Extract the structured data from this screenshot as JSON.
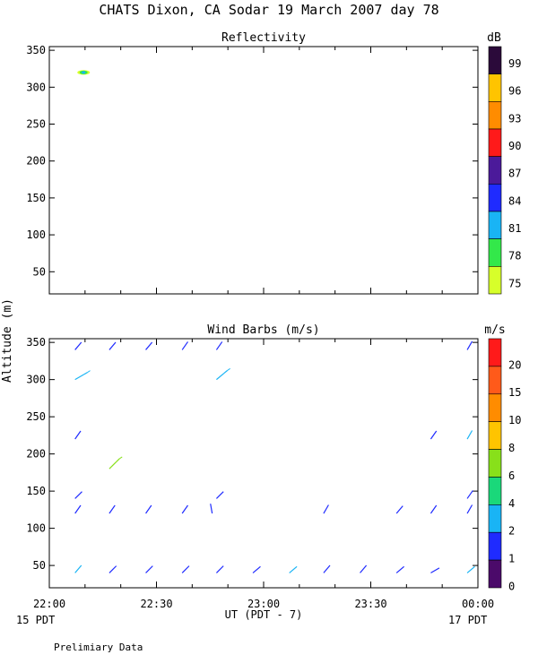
{
  "figure": {
    "title": "CHATS Dixon, CA  Sodar  19 March 2007  day  78",
    "y_label": "Altitude (m)",
    "x_label": "UT  (PDT - 7)",
    "left_date": "15 PDT",
    "right_date": "17 PDT",
    "footer": "Prelimiary Data"
  },
  "chart_data": [
    {
      "type": "heatmap",
      "title": "Reflectivity",
      "x_ticks": [
        "22:00",
        "22:30",
        "23:00",
        "23:30",
        "00:00"
      ],
      "x_range_hours": [
        22.0,
        24.0
      ],
      "ylim": [
        20,
        355
      ],
      "y_ticks": [
        50,
        100,
        150,
        200,
        250,
        300,
        350
      ],
      "grid": false,
      "colorbar": {
        "unit": "dB",
        "labels": [
          "99",
          "96",
          "93",
          "90",
          "87",
          "84",
          "81",
          "78",
          "75"
        ],
        "colors": [
          "#2b0a3a",
          "#ffc400",
          "#ff8c00",
          "#ff1a1a",
          "#4b1a9a",
          "#1f2bff",
          "#19b4f5",
          "#33e84a",
          "#d7ff2a"
        ]
      },
      "points": [
        {
          "time_hour": 22.16,
          "altitude": 320,
          "value": 78
        }
      ]
    },
    {
      "type": "scatter",
      "title": "Wind Barbs (m/s)",
      "x_ticks": [
        "22:00",
        "22:30",
        "23:00",
        "23:30",
        "00:00"
      ],
      "x_range_hours": [
        22.0,
        24.0
      ],
      "ylim": [
        20,
        355
      ],
      "y_ticks": [
        50,
        100,
        150,
        200,
        250,
        300,
        350
      ],
      "grid": false,
      "colorbar": {
        "unit": "m/s",
        "labels": [
          "20",
          "15",
          "10",
          "8",
          "6",
          "4",
          "2",
          "1",
          "0"
        ],
        "colors": [
          "#ff1a1a",
          "#ff5a1a",
          "#ff8c00",
          "#ffc400",
          "#88e01a",
          "#1ad87a",
          "#19b4f5",
          "#1f2bff",
          "#4b0a6a"
        ]
      },
      "barbs": [
        {
          "t": 22.12,
          "alt": 340,
          "dir": 220,
          "color": "#1f2bff",
          "staff": false
        },
        {
          "t": 22.28,
          "alt": 340,
          "dir": 220,
          "color": "#1f2bff",
          "staff": false
        },
        {
          "t": 22.45,
          "alt": 340,
          "dir": 220,
          "color": "#1f2bff",
          "staff": false
        },
        {
          "t": 22.62,
          "alt": 340,
          "dir": 215,
          "color": "#1f2bff",
          "staff": false
        },
        {
          "t": 22.78,
          "alt": 340,
          "dir": 215,
          "color": "#1f2bff",
          "staff": false
        },
        {
          "t": 23.95,
          "alt": 340,
          "dir": 210,
          "color": "#1f2bff",
          "staff": false
        },
        {
          "t": 22.12,
          "alt": 300,
          "dir": 240,
          "color": "#19b4f5",
          "staff": true
        },
        {
          "t": 22.78,
          "alt": 300,
          "dir": 230,
          "color": "#19b4f5",
          "staff": true
        },
        {
          "t": 22.12,
          "alt": 220,
          "dir": 215,
          "color": "#1f2bff",
          "staff": false
        },
        {
          "t": 23.78,
          "alt": 220,
          "dir": 215,
          "color": "#1f2bff",
          "staff": false
        },
        {
          "t": 23.95,
          "alt": 220,
          "dir": 210,
          "color": "#19b4f5",
          "staff": false
        },
        {
          "t": 22.28,
          "alt": 180,
          "dir": 225,
          "color": "#88e01a",
          "staff": true
        },
        {
          "t": 22.12,
          "alt": 140,
          "dir": 225,
          "color": "#1f2bff",
          "staff": false
        },
        {
          "t": 22.78,
          "alt": 140,
          "dir": 225,
          "color": "#1f2bff",
          "staff": false
        },
        {
          "t": 23.95,
          "alt": 140,
          "dir": 215,
          "color": "#1f2bff",
          "staff": false
        },
        {
          "t": 22.12,
          "alt": 120,
          "dir": 215,
          "color": "#1f2bff",
          "staff": false
        },
        {
          "t": 22.28,
          "alt": 120,
          "dir": 215,
          "color": "#1f2bff",
          "staff": false
        },
        {
          "t": 22.45,
          "alt": 120,
          "dir": 215,
          "color": "#1f2bff",
          "staff": false
        },
        {
          "t": 22.62,
          "alt": 120,
          "dir": 215,
          "color": "#1f2bff",
          "staff": false
        },
        {
          "t": 22.76,
          "alt": 120,
          "dir": 170,
          "color": "#1f2bff",
          "staff": false
        },
        {
          "t": 23.28,
          "alt": 120,
          "dir": 210,
          "color": "#1f2bff",
          "staff": false
        },
        {
          "t": 23.62,
          "alt": 120,
          "dir": 220,
          "color": "#1f2bff",
          "staff": false
        },
        {
          "t": 23.78,
          "alt": 120,
          "dir": 215,
          "color": "#1f2bff",
          "staff": false
        },
        {
          "t": 23.95,
          "alt": 120,
          "dir": 210,
          "color": "#1f2bff",
          "staff": false
        },
        {
          "t": 22.12,
          "alt": 40,
          "dir": 220,
          "color": "#19b4f5",
          "staff": false
        },
        {
          "t": 22.28,
          "alt": 40,
          "dir": 225,
          "color": "#1f2bff",
          "staff": false
        },
        {
          "t": 22.45,
          "alt": 40,
          "dir": 225,
          "color": "#1f2bff",
          "staff": false
        },
        {
          "t": 22.62,
          "alt": 40,
          "dir": 225,
          "color": "#1f2bff",
          "staff": false
        },
        {
          "t": 22.78,
          "alt": 40,
          "dir": 225,
          "color": "#1f2bff",
          "staff": false
        },
        {
          "t": 22.95,
          "alt": 40,
          "dir": 230,
          "color": "#1f2bff",
          "staff": false
        },
        {
          "t": 23.12,
          "alt": 40,
          "dir": 230,
          "color": "#19b4f5",
          "staff": false
        },
        {
          "t": 23.28,
          "alt": 40,
          "dir": 220,
          "color": "#1f2bff",
          "staff": false
        },
        {
          "t": 23.45,
          "alt": 40,
          "dir": 220,
          "color": "#1f2bff",
          "staff": false
        },
        {
          "t": 23.62,
          "alt": 40,
          "dir": 230,
          "color": "#1f2bff",
          "staff": false
        },
        {
          "t": 23.78,
          "alt": 40,
          "dir": 240,
          "color": "#1f2bff",
          "staff": false
        },
        {
          "t": 23.95,
          "alt": 40,
          "dir": 230,
          "color": "#19b4f5",
          "staff": false
        }
      ]
    }
  ]
}
